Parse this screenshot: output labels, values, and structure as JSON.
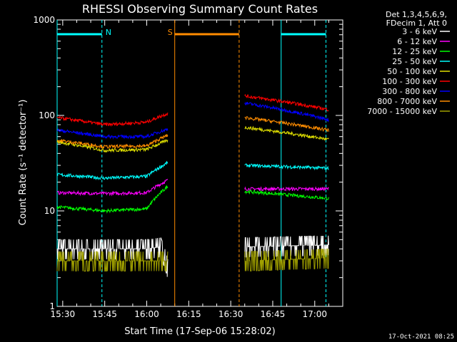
{
  "chart_data": {
    "type": "line",
    "title": "RHESSI Observing Summary Count Rates",
    "xlabel": "Start Time (17-Sep-06 15:28:02)",
    "ylabel": "Count Rate (s⁻¹ detector⁻¹)",
    "y_scale": "log",
    "ylim": [
      1,
      1000
    ],
    "xlim": [
      "15:28",
      "17:10"
    ],
    "x_ticks": [
      "15:30",
      "15:45",
      "16:00",
      "16:15",
      "16:30",
      "16:45",
      "17:00"
    ],
    "y_ticks": [
      "1",
      "10",
      "100",
      "1000"
    ],
    "legend": {
      "placement": "outside-right",
      "header": [
        "Det 1,3,4,5,6,9,",
        "FDecim 1, Att 0"
      ],
      "entries": [
        {
          "label": "3 - 6 keV",
          "color": "#ffffff"
        },
        {
          "label": "6 - 12 keV",
          "color": "#ff00ff"
        },
        {
          "label": "12 - 25 keV",
          "color": "#00ff00"
        },
        {
          "label": "25 - 50 keV",
          "color": "#00ffff"
        },
        {
          "label": "50 - 100 keV",
          "color": "#e0e000"
        },
        {
          "label": "100 - 300 keV",
          "color": "#ff0000"
        },
        {
          "label": "300 - 800 keV",
          "color": "#0000ff"
        },
        {
          "label": "800 - 7000 keV",
          "color": "#ff8c00"
        },
        {
          "label": "7000 - 15000 keV",
          "color": "#a0a000"
        }
      ]
    },
    "segments": [
      {
        "start": "15:28",
        "end": "16:07.5"
      },
      {
        "start": "16:35",
        "end": "17:05"
      }
    ],
    "series": [
      {
        "name": "3 - 6 keV",
        "color": "#ffffff",
        "points": [
          [
            "15:28",
            4.0
          ],
          [
            "16:00",
            4.0
          ],
          [
            "16:05",
            4.2
          ],
          [
            "16:07.5",
            2.5
          ],
          [
            "16:35",
            4.2
          ],
          [
            "17:05",
            4.4
          ]
        ]
      },
      {
        "name": "6 - 12 keV",
        "color": "#ff00ff",
        "points": [
          [
            "15:28",
            15.5
          ],
          [
            "15:45",
            15.2
          ],
          [
            "16:00",
            15.5
          ],
          [
            "16:07.5",
            21
          ],
          [
            "16:35",
            17
          ],
          [
            "17:05",
            17
          ]
        ]
      },
      {
        "name": "12 - 25 keV",
        "color": "#00ff00",
        "points": [
          [
            "15:28",
            11
          ],
          [
            "15:45",
            10
          ],
          [
            "16:00",
            10.5
          ],
          [
            "16:07.5",
            18
          ],
          [
            "16:35",
            16
          ],
          [
            "17:05",
            13.5
          ]
        ]
      },
      {
        "name": "25 - 50 keV",
        "color": "#00ffff",
        "points": [
          [
            "15:28",
            24
          ],
          [
            "15:45",
            22
          ],
          [
            "16:00",
            23
          ],
          [
            "16:07.5",
            32
          ],
          [
            "16:35",
            30
          ],
          [
            "17:05",
            28
          ]
        ]
      },
      {
        "name": "50 - 100 keV",
        "color": "#e0e000",
        "points": [
          [
            "15:28",
            53
          ],
          [
            "15:45",
            43
          ],
          [
            "16:00",
            44
          ],
          [
            "16:07.5",
            55
          ],
          [
            "16:35",
            75
          ],
          [
            "17:05",
            56
          ]
        ]
      },
      {
        "name": "100 - 300 keV",
        "color": "#ff0000",
        "points": [
          [
            "15:28",
            95
          ],
          [
            "15:45",
            80
          ],
          [
            "16:00",
            85
          ],
          [
            "16:07.5",
            105
          ],
          [
            "16:35",
            160
          ],
          [
            "17:05",
            115
          ]
        ]
      },
      {
        "name": "300 - 800 keV",
        "color": "#0000ff",
        "points": [
          [
            "15:28",
            70
          ],
          [
            "15:45",
            60
          ],
          [
            "16:00",
            60
          ],
          [
            "16:07.5",
            72
          ],
          [
            "16:35",
            135
          ],
          [
            "17:05",
            90
          ]
        ]
      },
      {
        "name": "800 - 7000 keV",
        "color": "#ff8c00",
        "points": [
          [
            "15:28",
            55
          ],
          [
            "15:45",
            47
          ],
          [
            "16:00",
            48
          ],
          [
            "16:07.5",
            62
          ],
          [
            "16:35",
            95
          ],
          [
            "17:05",
            70
          ]
        ]
      },
      {
        "name": "7000 - 15000 keV",
        "color": "#a0a000",
        "points": [
          [
            "15:28",
            3.0
          ],
          [
            "16:07.5",
            3.0
          ],
          [
            "16:35",
            3.0
          ],
          [
            "17:05",
            3.2
          ]
        ]
      }
    ],
    "annotations": [
      {
        "label": "N",
        "kind": "night",
        "start": "15:28",
        "end": "15:44",
        "color": "#00ffff"
      },
      {
        "label": "",
        "kind": "night",
        "start": "16:48",
        "end": "17:04",
        "color": "#00ffff"
      },
      {
        "label": "S",
        "kind": "saa",
        "start": "16:10",
        "end": "16:33",
        "color": "#ff8c00"
      }
    ],
    "timestamp": "17-Oct-2021 08:25"
  }
}
